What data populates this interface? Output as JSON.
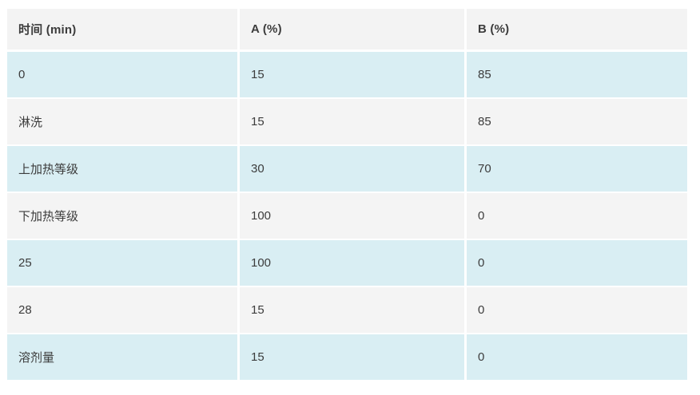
{
  "page": {
    "background": "#ffffff"
  },
  "table": {
    "title": "gradient-method-table",
    "headers": [
      "时间 (min)",
      "A (%)",
      "B (%)"
    ],
    "header_names": [
      "column-header-time",
      "column-header-a-percent",
      "column-header-b-percent"
    ],
    "rows": [
      {
        "time": "0",
        "a": "15",
        "b": "85"
      },
      {
        "time": "淋洗",
        "a": "15",
        "b": "85"
      },
      {
        "time": "上加热等级",
        "a": "30",
        "b": "70"
      },
      {
        "time": "下加热等级",
        "a": "100",
        "b": "0"
      },
      {
        "time": "25",
        "a": "100",
        "b": "0"
      },
      {
        "time": "28",
        "a": "15",
        "b": "0"
      },
      {
        "time": "溶剂量",
        "a": "15",
        "b": "0"
      }
    ],
    "colors": {
      "header_bg": "#f3f3f3",
      "row_alt_cyan": "#d9eef3",
      "row_alt_gray": "#f4f4f4",
      "gutter": "#ffffff",
      "text": "#3c3c3c"
    }
  }
}
